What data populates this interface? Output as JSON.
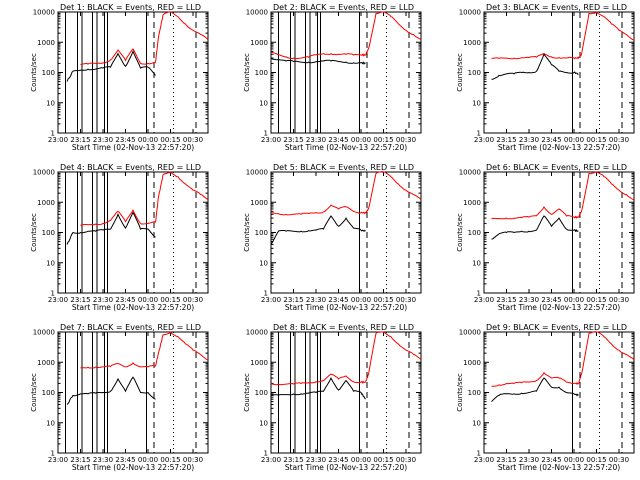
{
  "figure": {
    "ylabel": "Counts/sec",
    "xlabel": "Start Time (02-Nov-13 22:57:20)",
    "xticks": [
      "23:00",
      "23:15",
      "23:30",
      "23:45",
      "00:00",
      "00:15",
      "00:30"
    ],
    "yticks": [
      "1",
      "10",
      "100",
      "1000",
      "10000"
    ],
    "colors": {
      "events": "#000000",
      "lld": "#ff0000",
      "axes": "#000000"
    }
  },
  "chart_data": [
    {
      "type": "line",
      "title": "Det 1: BLACK = Events, RED = LLD",
      "xlabel": "Start Time (02-Nov-13 22:57:20)",
      "ylabel": "Counts/sec",
      "xlim": [
        "23:00",
        "00:40"
      ],
      "ylim": [
        1,
        10000
      ],
      "yscale": "log",
      "x": [
        "23:06",
        "23:10",
        "23:15",
        "23:20",
        "23:25",
        "23:30",
        "23:35",
        "23:40",
        "23:45",
        "23:50",
        "23:55",
        "00:00",
        "00:05",
        "00:07",
        "00:10",
        "00:15",
        "00:20",
        "00:25",
        "00:30",
        "00:35",
        "00:40"
      ],
      "series": [
        {
          "name": "LLD",
          "color": "#ff0000",
          "values": [
            null,
            null,
            180,
            190,
            200,
            210,
            260,
            550,
            250,
            600,
            200,
            200,
            220,
            1500,
            8000,
            10000,
            7000,
            4000,
            2500,
            1800,
            1200
          ]
        },
        {
          "name": "Events",
          "color": "#000000",
          "values": [
            50,
            110,
            120,
            130,
            130,
            140,
            150,
            420,
            160,
            500,
            140,
            150,
            80,
            null,
            null,
            null,
            null,
            null,
            null,
            null,
            null
          ]
        }
      ],
      "vlines_solid": [
        "23:05",
        "23:13",
        "23:16",
        "23:23",
        "23:26",
        "23:31",
        "23:33",
        "23:59"
      ],
      "vlines_dashed": [
        "00:04",
        "00:32"
      ],
      "vlines_dotted": [
        "00:17"
      ]
    },
    {
      "type": "line",
      "title": "Det 2: BLACK = Events, RED = LLD",
      "xlabel": "Start Time (02-Nov-13 22:57:20)",
      "ylabel": "Counts/sec",
      "xlim": [
        "23:00",
        "00:40"
      ],
      "ylim": [
        1,
        10000
      ],
      "yscale": "log",
      "x": [
        "23:00",
        "23:05",
        "23:10",
        "23:15",
        "23:20",
        "23:25",
        "23:30",
        "23:35",
        "23:40",
        "23:45",
        "23:50",
        "23:55",
        "00:00",
        "00:03",
        "00:05",
        "00:10",
        "00:15",
        "00:20",
        "00:25",
        "00:30",
        "00:35",
        "00:40"
      ],
      "series": [
        {
          "name": "LLD",
          "color": "#ff0000",
          "values": [
            450,
            380,
            330,
            300,
            300,
            320,
            380,
            420,
            420,
            400,
            400,
            380,
            380,
            380,
            600,
            9000,
            10000,
            7000,
            4000,
            2500,
            1800,
            1200
          ]
        },
        {
          "name": "Events",
          "color": "#000000",
          "values": [
            300,
            270,
            240,
            230,
            220,
            220,
            230,
            240,
            240,
            230,
            220,
            210,
            210,
            200,
            null,
            null,
            null,
            null,
            null,
            null,
            null,
            null
          ]
        }
      ],
      "vlines_solid": [
        "23:05",
        "23:13",
        "23:16",
        "23:23",
        "23:26",
        "23:31",
        "23:33",
        "23:59"
      ],
      "vlines_dashed": [
        "00:04",
        "00:32"
      ],
      "vlines_dotted": [
        "00:17"
      ]
    },
    {
      "type": "line",
      "title": "Det 3: BLACK = Events, RED = LLD",
      "xlabel": "Start Time (02-Nov-13 22:57:20)",
      "ylabel": "Counts/sec",
      "xlim": [
        "23:00",
        "00:40"
      ],
      "ylim": [
        1,
        10000
      ],
      "yscale": "log",
      "x": [
        "23:05",
        "23:10",
        "23:15",
        "23:20",
        "23:25",
        "23:30",
        "23:35",
        "23:40",
        "23:45",
        "23:50",
        "23:55",
        "00:00",
        "00:03",
        "00:05",
        "00:10",
        "00:15",
        "00:20",
        "00:25",
        "00:30",
        "00:35",
        "00:40"
      ],
      "series": [
        {
          "name": "LLD",
          "color": "#ff0000",
          "values": [
            280,
            290,
            300,
            300,
            310,
            310,
            320,
            420,
            330,
            310,
            300,
            300,
            300,
            400,
            9000,
            10000,
            7000,
            4000,
            2500,
            1800,
            1200
          ]
        },
        {
          "name": "Events",
          "color": "#000000",
          "values": [
            60,
            80,
            90,
            90,
            100,
            100,
            110,
            400,
            180,
            110,
            100,
            100,
            90,
            null,
            null,
            null,
            null,
            null,
            null,
            null,
            null
          ]
        }
      ],
      "vlines_solid": [
        "23:59"
      ],
      "vlines_dashed": [
        "00:04",
        "00:32"
      ],
      "vlines_dotted": [
        "00:17"
      ]
    },
    {
      "type": "line",
      "title": "Det 4: BLACK = Events, RED = LLD",
      "xlabel": "Start Time (02-Nov-13 22:57:20)",
      "ylabel": "Counts/sec",
      "xlim": [
        "23:00",
        "00:40"
      ],
      "ylim": [
        1,
        10000
      ],
      "yscale": "log",
      "x": [
        "23:06",
        "23:10",
        "23:15",
        "23:20",
        "23:25",
        "23:30",
        "23:35",
        "23:40",
        "23:45",
        "23:50",
        "23:55",
        "00:00",
        "00:05",
        "00:07",
        "00:10",
        "00:15",
        "00:20",
        "00:25",
        "00:30",
        "00:35",
        "00:40"
      ],
      "series": [
        {
          "name": "LLD",
          "color": "#ff0000",
          "values": [
            null,
            null,
            170,
            180,
            190,
            200,
            250,
            500,
            230,
            550,
            200,
            200,
            220,
            1500,
            8000,
            10000,
            7000,
            4000,
            2500,
            1800,
            1200
          ]
        },
        {
          "name": "Events",
          "color": "#000000",
          "values": [
            40,
            100,
            100,
            110,
            110,
            120,
            130,
            400,
            140,
            450,
            130,
            130,
            70,
            null,
            null,
            null,
            null,
            null,
            null,
            null,
            null
          ]
        }
      ],
      "vlines_solid": [
        "23:05",
        "23:13",
        "23:16",
        "23:23",
        "23:26",
        "23:31",
        "23:33",
        "23:59"
      ],
      "vlines_dashed": [
        "00:04",
        "00:32"
      ],
      "vlines_dotted": [
        "00:17"
      ]
    },
    {
      "type": "line",
      "title": "Det 5: BLACK = Events, RED = LLD",
      "xlabel": "Start Time (02-Nov-13 22:57:20)",
      "ylabel": "Counts/sec",
      "xlim": [
        "23:00",
        "00:40"
      ],
      "ylim": [
        1,
        10000
      ],
      "yscale": "log",
      "x": [
        "23:00",
        "23:05",
        "23:10",
        "23:15",
        "23:20",
        "23:25",
        "23:30",
        "23:35",
        "23:40",
        "23:45",
        "23:50",
        "23:55",
        "00:00",
        "00:03",
        "00:05",
        "00:10",
        "00:15",
        "00:20",
        "00:25",
        "00:30",
        "00:35",
        "00:40"
      ],
      "series": [
        {
          "name": "LLD",
          "color": "#ff0000",
          "values": [
            450,
            420,
            400,
            400,
            400,
            420,
            450,
            480,
            800,
            600,
            700,
            500,
            450,
            450,
            600,
            9000,
            10000,
            7000,
            4000,
            2500,
            1800,
            1200
          ]
        },
        {
          "name": "Events",
          "color": "#000000",
          "values": [
            40,
            110,
            110,
            110,
            110,
            115,
            120,
            130,
            350,
            160,
            300,
            140,
            120,
            110,
            null,
            null,
            null,
            null,
            null,
            null,
            null,
            null
          ]
        }
      ],
      "vlines_solid": [
        "23:59"
      ],
      "vlines_dashed": [
        "00:04",
        "00:32"
      ],
      "vlines_dotted": [
        "00:17"
      ]
    },
    {
      "type": "line",
      "title": "Det 6: BLACK = Events, RED = LLD",
      "xlabel": "Start Time (02-Nov-13 22:57:20)",
      "ylabel": "Counts/sec",
      "xlim": [
        "23:00",
        "00:40"
      ],
      "ylim": [
        1,
        10000
      ],
      "yscale": "log",
      "x": [
        "23:05",
        "23:10",
        "23:15",
        "23:20",
        "23:25",
        "23:30",
        "23:35",
        "23:40",
        "23:45",
        "23:50",
        "23:55",
        "00:00",
        "00:03",
        "00:05",
        "00:10",
        "00:15",
        "00:20",
        "00:25",
        "00:30",
        "00:35",
        "00:40"
      ],
      "series": [
        {
          "name": "LLD",
          "color": "#ff0000",
          "values": [
            280,
            290,
            300,
            300,
            310,
            320,
            360,
            700,
            400,
            600,
            350,
            320,
            320,
            500,
            9000,
            10000,
            7000,
            4000,
            2500,
            1800,
            1200
          ]
        },
        {
          "name": "Events",
          "color": "#000000",
          "values": [
            60,
            90,
            100,
            100,
            110,
            110,
            120,
            350,
            160,
            300,
            130,
            120,
            110,
            null,
            null,
            null,
            null,
            null,
            null,
            null,
            null
          ]
        }
      ],
      "vlines_solid": [
        "23:59"
      ],
      "vlines_dashed": [
        "00:04",
        "00:32"
      ],
      "vlines_dotted": [
        "00:17"
      ]
    },
    {
      "type": "line",
      "title": "Det 7: BLACK = Events, RED = LLD",
      "xlabel": "Start Time (02-Nov-13 22:57:20)",
      "ylabel": "Counts/sec",
      "xlim": [
        "23:00",
        "00:40"
      ],
      "ylim": [
        1,
        10000
      ],
      "yscale": "log",
      "x": [
        "23:06",
        "23:10",
        "23:15",
        "23:20",
        "23:25",
        "23:30",
        "23:35",
        "23:40",
        "23:45",
        "23:50",
        "23:55",
        "00:00",
        "00:05",
        "00:07",
        "00:10",
        "00:15",
        "00:20",
        "00:25",
        "00:30",
        "00:35",
        "00:40"
      ],
      "series": [
        {
          "name": "LLD",
          "color": "#ff0000",
          "values": [
            null,
            null,
            650,
            680,
            690,
            700,
            720,
            900,
            700,
            950,
            700,
            700,
            750,
            2000,
            8000,
            10000,
            7000,
            4000,
            2500,
            1800,
            1200
          ]
        },
        {
          "name": "Events",
          "color": "#000000",
          "values": [
            40,
            80,
            90,
            90,
            95,
            100,
            110,
            280,
            110,
            320,
            100,
            100,
            60,
            null,
            null,
            null,
            null,
            null,
            null,
            null,
            null
          ]
        }
      ],
      "vlines_solid": [
        "23:05",
        "23:13",
        "23:16",
        "23:23",
        "23:26",
        "23:31",
        "23:33",
        "23:59"
      ],
      "vlines_dashed": [
        "00:04",
        "00:32"
      ],
      "vlines_dotted": [
        "00:17"
      ]
    },
    {
      "type": "line",
      "title": "Det 8: BLACK = Events, RED = LLD",
      "xlabel": "Start Time (02-Nov-13 22:57:20)",
      "ylabel": "Counts/sec",
      "xlim": [
        "23:00",
        "00:40"
      ],
      "ylim": [
        1,
        10000
      ],
      "yscale": "log",
      "x": [
        "23:00",
        "23:05",
        "23:10",
        "23:15",
        "23:20",
        "23:25",
        "23:30",
        "23:35",
        "23:40",
        "23:45",
        "23:50",
        "23:55",
        "00:00",
        "00:03",
        "00:05",
        "00:10",
        "00:15",
        "00:20",
        "00:25",
        "00:30",
        "00:35",
        "00:40"
      ],
      "series": [
        {
          "name": "LLD",
          "color": "#ff0000",
          "values": [
            200,
            190,
            190,
            190,
            200,
            210,
            230,
            250,
            400,
            280,
            350,
            230,
            220,
            220,
            400,
            9000,
            10000,
            7000,
            4000,
            2500,
            1800,
            1200
          ]
        },
        {
          "name": "Events",
          "color": "#000000",
          "values": [
            80,
            80,
            85,
            90,
            90,
            95,
            100,
            110,
            300,
            120,
            250,
            110,
            100,
            60,
            null,
            null,
            null,
            null,
            null,
            null,
            null,
            null
          ]
        }
      ],
      "vlines_solid": [
        "23:05",
        "23:13",
        "23:16",
        "23:23",
        "23:26",
        "23:31",
        "23:33",
        "23:59"
      ],
      "vlines_dashed": [
        "00:04",
        "00:32"
      ],
      "vlines_dotted": [
        "00:17"
      ]
    },
    {
      "type": "line",
      "title": "Det 9: BLACK = Events, RED = LLD",
      "xlabel": "Start Time (02-Nov-13 22:57:20)",
      "ylabel": "Counts/sec",
      "xlim": [
        "23:00",
        "00:40"
      ],
      "ylim": [
        1,
        10000
      ],
      "yscale": "log",
      "x": [
        "23:05",
        "23:10",
        "23:15",
        "23:20",
        "23:25",
        "23:30",
        "23:35",
        "23:40",
        "23:45",
        "23:50",
        "23:55",
        "00:00",
        "00:03",
        "00:05",
        "00:10",
        "00:15",
        "00:20",
        "00:25",
        "00:30",
        "00:35",
        "00:40"
      ],
      "series": [
        {
          "name": "LLD",
          "color": "#ff0000",
          "values": [
            160,
            180,
            200,
            200,
            210,
            220,
            250,
            450,
            300,
            300,
            220,
            200,
            200,
            400,
            9000,
            10000,
            7000,
            4000,
            2500,
            1800,
            1200
          ]
        },
        {
          "name": "Events",
          "color": "#000000",
          "values": [
            50,
            80,
            90,
            90,
            95,
            100,
            110,
            300,
            150,
            150,
            100,
            90,
            80,
            null,
            null,
            null,
            null,
            null,
            null,
            null,
            null
          ]
        }
      ],
      "vlines_solid": [
        "23:59"
      ],
      "vlines_dashed": [
        "00:04",
        "00:32"
      ],
      "vlines_dotted": [
        "00:17"
      ]
    }
  ]
}
